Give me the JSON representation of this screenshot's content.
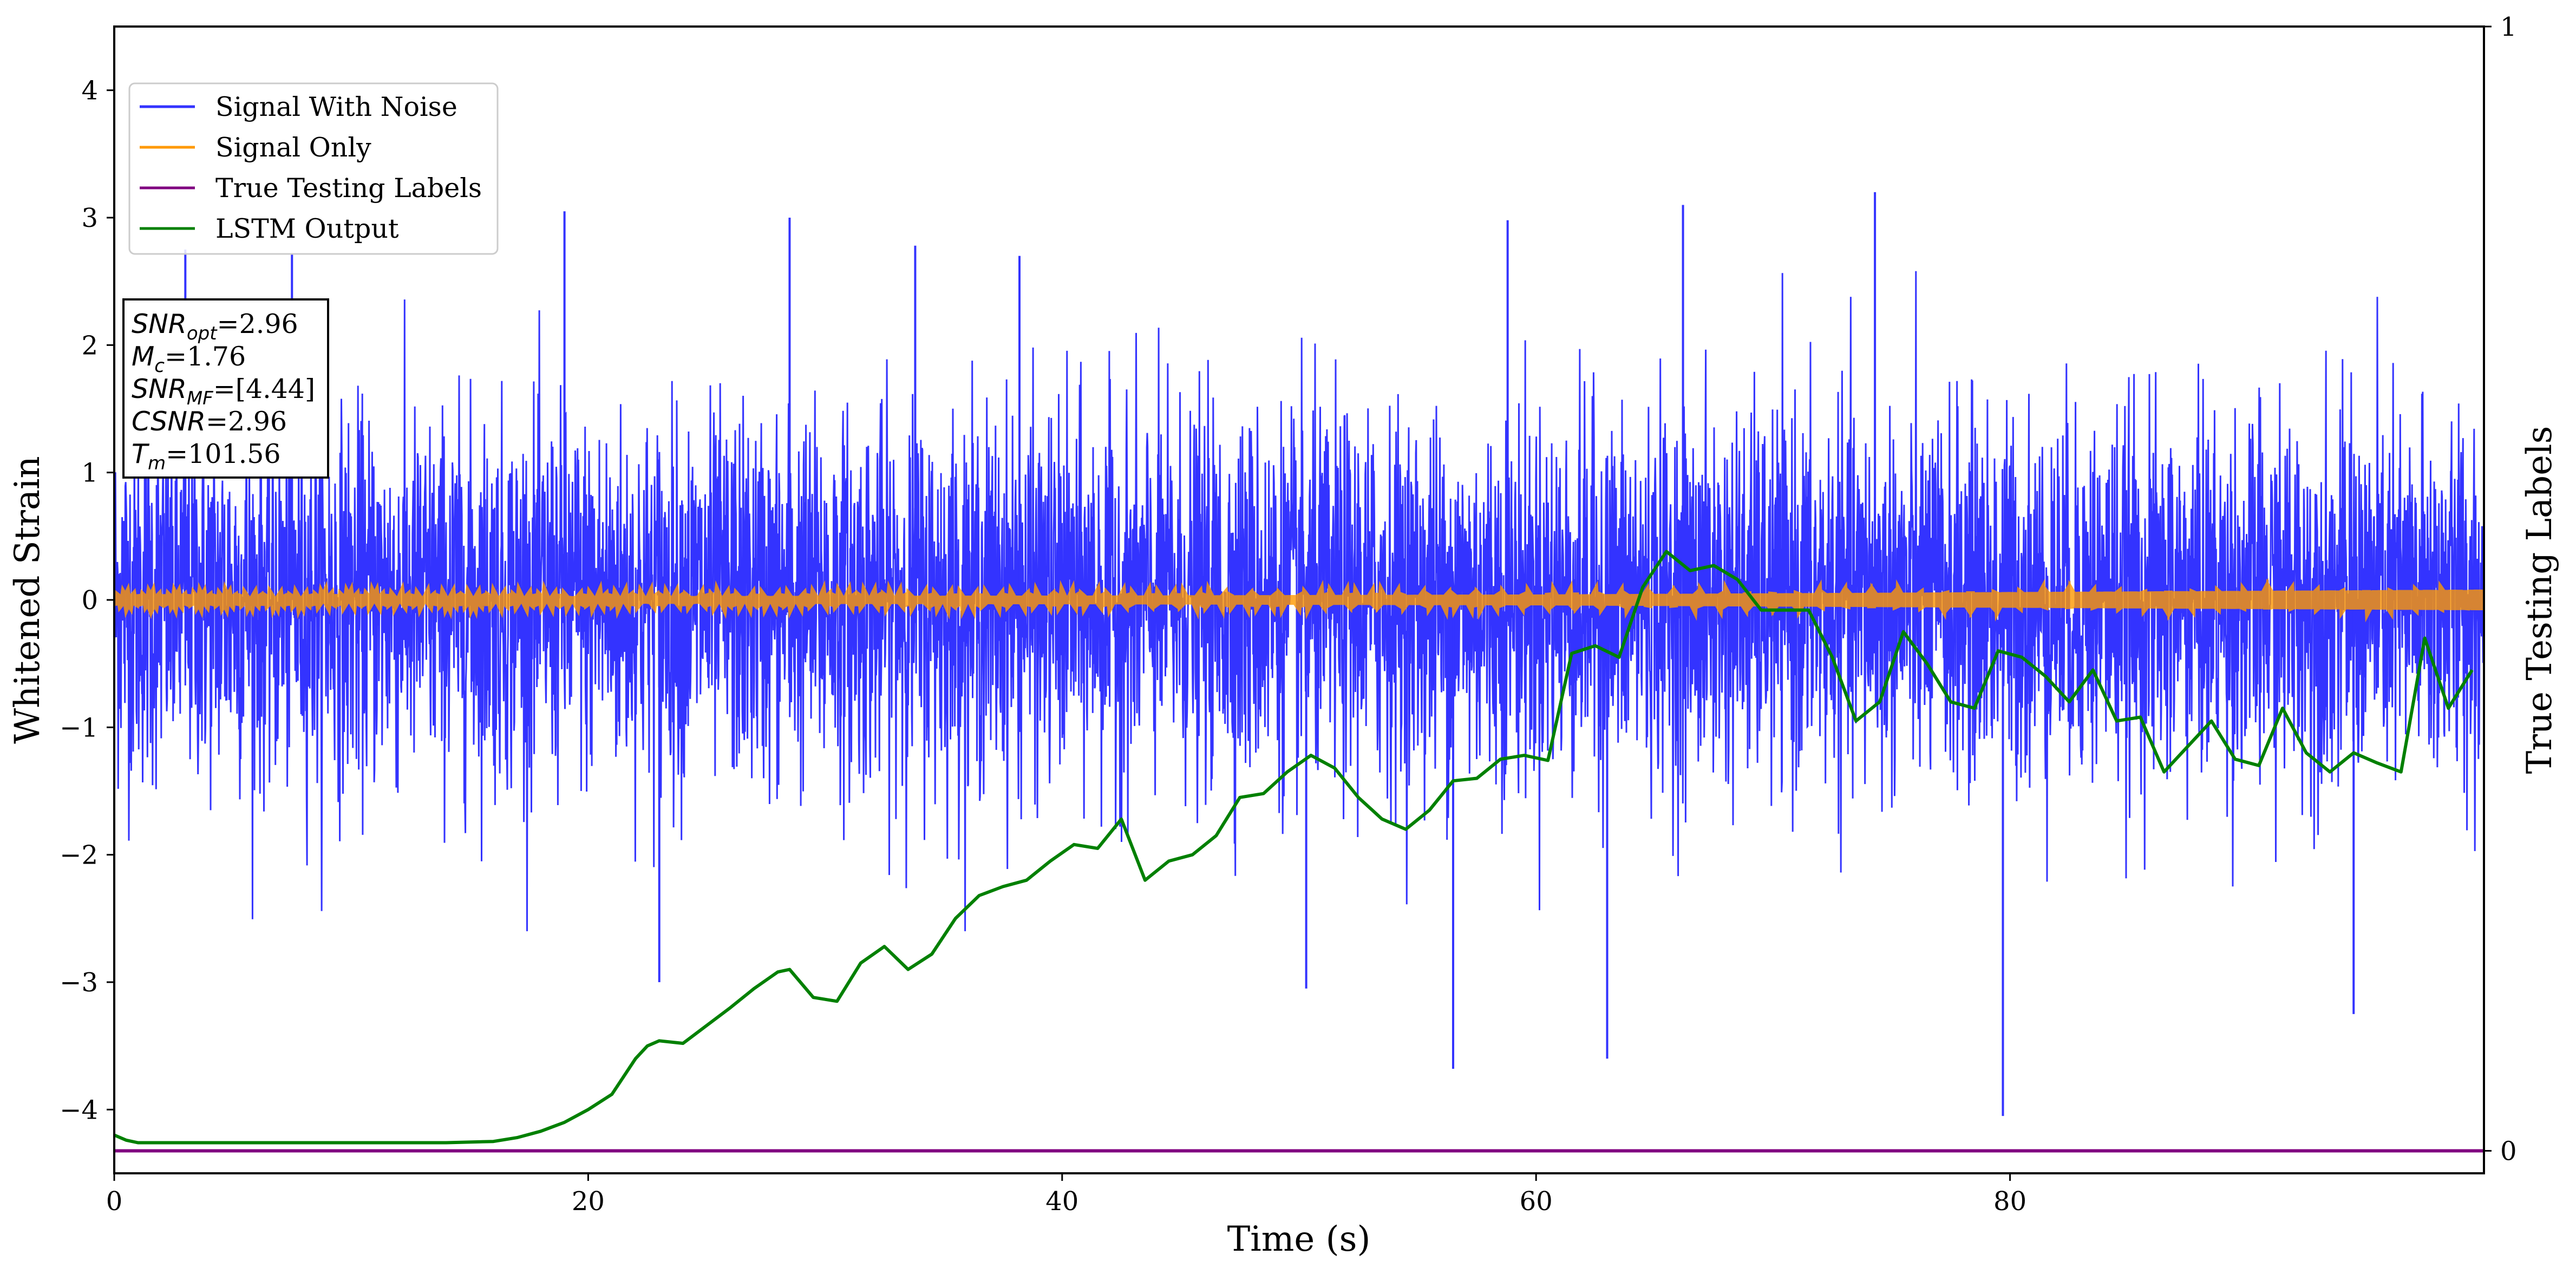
{
  "chart_data": {
    "type": "line",
    "xlabel": "Time (s)",
    "ylabel": "Whitened Strain",
    "y2label": "True Testing Labels",
    "xlim": [
      0,
      100
    ],
    "ylim": [
      -4.5,
      4.5
    ],
    "y2lim": [
      -0.02,
      1
    ],
    "x_ticks": [
      0,
      20,
      40,
      60,
      80
    ],
    "y_ticks": [
      -4,
      -3,
      -2,
      -1,
      0,
      1,
      2,
      3,
      4
    ],
    "y2_ticks": [
      0,
      1
    ],
    "grid": false,
    "legend_position": "upper-left",
    "series": [
      {
        "name": "Signal With Noise",
        "axis": "left",
        "color": "#3333ff",
        "description_of_shape": "dense noise",
        "y_range": [
          -4.05,
          3.2
        ],
        "notable_spikes": [
          {
            "x": 3.0,
            "y": 2.75
          },
          {
            "x": 7.5,
            "y": 2.72
          },
          {
            "x": 19.0,
            "y": 3.05
          },
          {
            "x": 28.5,
            "y": 3.0
          },
          {
            "x": 33.8,
            "y": 2.78
          },
          {
            "x": 38.2,
            "y": 2.7
          },
          {
            "x": 58.8,
            "y": 2.98
          },
          {
            "x": 66.2,
            "y": 3.1
          },
          {
            "x": 74.3,
            "y": 3.2
          },
          {
            "x": 56.5,
            "y": -3.68
          },
          {
            "x": 63.0,
            "y": -3.6
          },
          {
            "x": 79.7,
            "y": -4.05
          },
          {
            "x": 94.5,
            "y": -3.25
          },
          {
            "x": 50.3,
            "y": -3.05
          },
          {
            "x": 23.0,
            "y": -3.0
          }
        ]
      },
      {
        "name": "Signal Only",
        "axis": "left",
        "color": "#ff9900",
        "description_of_shape": "thin oscillation band around zero, amplitude growing over time",
        "envelope_x": [
          0,
          20,
          40,
          60,
          80,
          100
        ],
        "envelope_amplitude": [
          0.02,
          0.025,
          0.03,
          0.04,
          0.06,
          0.08
        ]
      },
      {
        "name": "True Testing Labels",
        "axis": "right",
        "color": "#800080",
        "x": [
          0,
          100
        ],
        "values": [
          0,
          0
        ]
      },
      {
        "name": "LSTM Output",
        "axis": "left",
        "color": "#008000",
        "x": [
          0,
          0.5,
          1,
          5,
          10,
          14,
          16,
          17,
          18,
          19,
          20,
          21,
          22,
          22.5,
          23,
          24,
          25,
          26,
          27,
          28,
          28.5,
          29.5,
          30.5,
          31.5,
          32.5,
          33.5,
          34.5,
          35.5,
          36.5,
          37.5,
          38.5,
          39.5,
          40.5,
          41.5,
          42.5,
          43.5,
          44.5,
          45.5,
          46.5,
          47.5,
          48.5,
          49.5,
          50.5,
          51.5,
          52.5,
          53.5,
          54.5,
          55.5,
          56.5,
          57.5,
          58.5,
          59.5,
          60.5,
          61.5,
          62.5,
          63.5,
          64.5,
          65.5,
          66.5,
          67.5,
          68.5,
          69.5,
          70.5,
          71.5,
          72.5,
          73.5,
          74.5,
          75.5,
          76.5,
          77.5,
          78.5,
          79.5,
          80.5,
          81.5,
          82.5,
          83.5,
          84.5,
          85.5,
          86.5,
          87.5,
          88.5,
          89.5,
          90.5,
          91.5,
          92.5,
          93.5,
          94.5,
          95.5,
          96.5,
          97.5,
          98.5,
          99.5
        ],
        "values": [
          -4.2,
          -4.24,
          -4.26,
          -4.26,
          -4.26,
          -4.26,
          -4.25,
          -4.22,
          -4.17,
          -4.1,
          -4.0,
          -3.88,
          -3.6,
          -3.5,
          -3.46,
          -3.48,
          -3.34,
          -3.2,
          -3.05,
          -2.92,
          -2.9,
          -3.12,
          -3.15,
          -2.85,
          -2.72,
          -2.9,
          -2.78,
          -2.5,
          -2.32,
          -2.25,
          -2.2,
          -2.05,
          -1.92,
          -1.95,
          -1.72,
          -2.2,
          -2.05,
          -2.0,
          -1.85,
          -1.55,
          -1.52,
          -1.35,
          -1.22,
          -1.32,
          -1.55,
          -1.72,
          -1.8,
          -1.65,
          -1.42,
          -1.4,
          -1.25,
          -1.22,
          -1.26,
          -0.42,
          -0.36,
          -0.45,
          0.1,
          0.38,
          0.23,
          0.27,
          0.16,
          -0.08,
          -0.08,
          -0.08,
          -0.45,
          -0.95,
          -0.8,
          -0.25,
          -0.5,
          -0.8,
          -0.85,
          -0.4,
          -0.45,
          -0.6,
          -0.8,
          -0.55,
          -0.95,
          -0.92,
          -1.35,
          -1.15,
          -0.95,
          -1.25,
          -1.3,
          -0.85,
          -1.2,
          -1.35,
          -1.2,
          -1.28,
          -1.35,
          -0.3,
          -0.85,
          -0.55
        ]
      }
    ],
    "annotation": {
      "lines": [
        {
          "base": "SNR",
          "sub": "opt",
          "value": "=2.96"
        },
        {
          "base": "M",
          "sub": "c",
          "value": "=1.76"
        },
        {
          "base": "SNR",
          "sub": "MF",
          "value": "=[4.44]"
        },
        {
          "base": "CSNR",
          "sub": "",
          "value": "=2.96"
        },
        {
          "base": "T",
          "sub": "m",
          "value": "=101.56"
        }
      ]
    }
  }
}
